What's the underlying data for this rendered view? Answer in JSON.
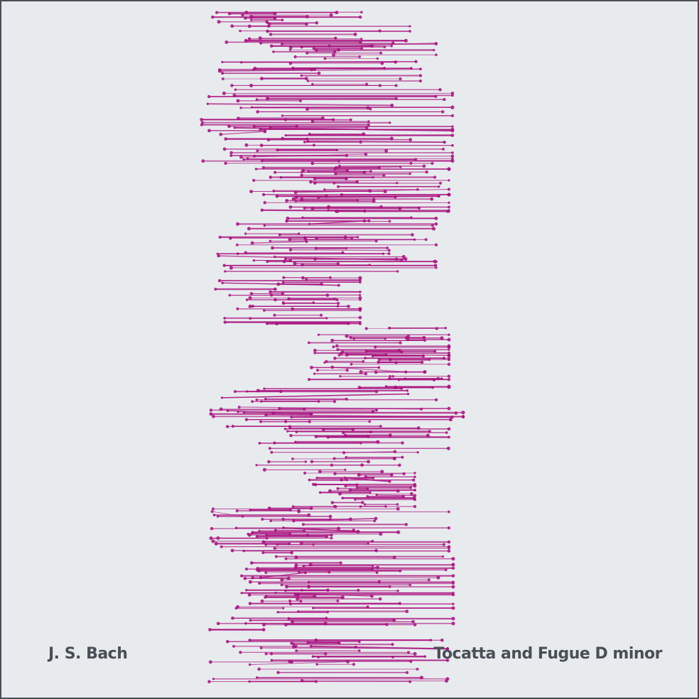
{
  "poster": {
    "composer": "J. S. Bach",
    "title": "Tocatta and Fugue D minor"
  },
  "colors": {
    "background": "#e8ebee",
    "border": "#4a4f57",
    "text": "#4a4f57",
    "note": "#a8107e"
  }
}
